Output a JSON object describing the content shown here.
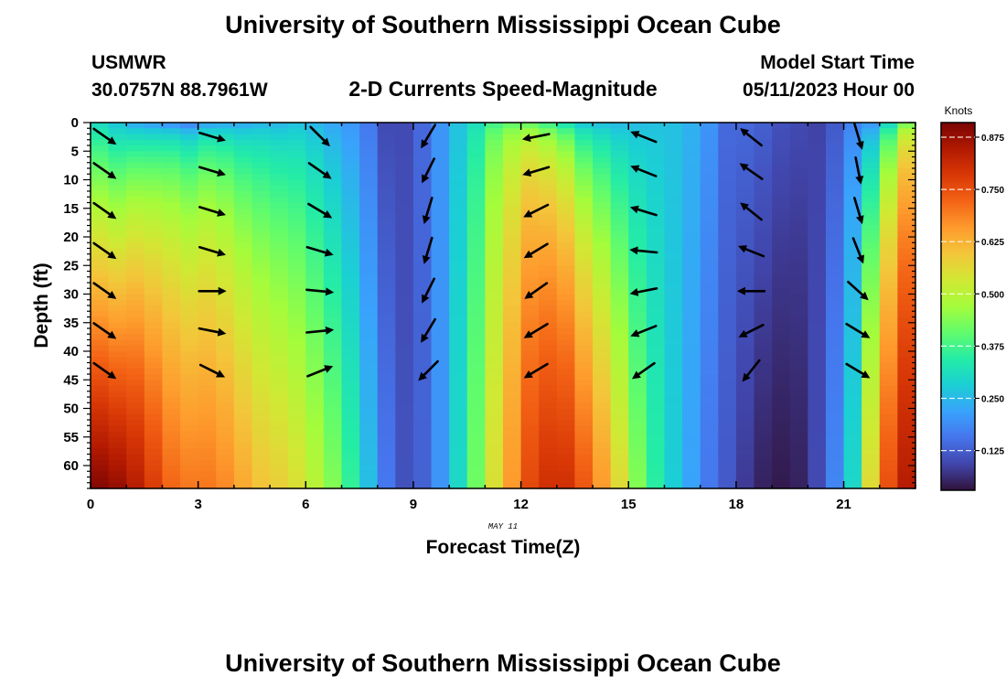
{
  "header": {
    "title": "University of Southern Mississippi Ocean Cube",
    "station": "USMWR",
    "location": "30.0757N  88.7961W",
    "subtitle": "2-D Currents Speed-Magnitude",
    "start_label": "Model Start Time",
    "start_value": "05/11/2023 Hour 00"
  },
  "footer": {
    "title": "University of Southern Mississippi Ocean Cube"
  },
  "colors": {
    "arrow": "#000000",
    "colormap": [
      "#30123b",
      "#4145ab",
      "#4675ed",
      "#39a2fc",
      "#1bcfd4",
      "#24eca6",
      "#61fc6c",
      "#a4fc3b",
      "#d1e834",
      "#f3c63a",
      "#fe9b2d",
      "#f36315",
      "#d93806",
      "#b11901",
      "#7a0403"
    ]
  },
  "chart_data": {
    "type": "heatmap",
    "xlabel": "Forecast Time(Z)",
    "ylabel": "Depth (ft)",
    "date_label": "MAY 11",
    "colorbar_label": "Knots",
    "colorbar_ticks": [
      "0.125",
      "0.250",
      "0.375",
      "0.500",
      "0.625",
      "0.750",
      "0.875"
    ],
    "xlim": [
      0,
      23
    ],
    "ylim": [
      0,
      64
    ],
    "x_ticks": [
      "0",
      "3",
      "6",
      "9",
      "12",
      "15",
      "18",
      "21"
    ],
    "y_ticks": [
      "0",
      "5",
      "10",
      "15",
      "20",
      "25",
      "30",
      "35",
      "40",
      "45",
      "50",
      "55",
      "60"
    ],
    "clim": [
      0.03,
      0.91
    ],
    "hours": [
      0,
      0.5,
      1,
      1.5,
      2,
      2.5,
      3,
      3.5,
      4,
      4.5,
      5,
      5.5,
      6,
      6.5,
      7,
      7.5,
      8,
      8.5,
      9,
      9.5,
      10,
      10.5,
      11,
      11.5,
      12,
      12.5,
      13,
      13.5,
      14,
      14.5,
      15,
      15.5,
      16,
      16.5,
      17,
      17.5,
      18,
      18.5,
      19,
      19.5,
      20,
      20.5,
      21,
      21.5,
      22,
      22.5,
      23
    ],
    "speed_top": [
      0.3,
      0.26,
      0.2,
      0.16,
      0.1,
      0.08,
      0.13,
      0.17,
      0.19,
      0.22,
      0.23,
      0.25,
      0.24,
      0.22,
      0.2,
      0.16,
      0.1,
      0.1,
      0.14,
      0.2,
      0.26,
      0.3,
      0.33,
      0.34,
      0.32,
      0.29,
      0.26,
      0.24,
      0.24,
      0.24,
      0.25,
      0.26,
      0.26,
      0.24,
      0.2,
      0.14,
      0.14,
      0.13,
      0.11,
      0.1,
      0.09,
      0.12,
      0.17,
      0.18,
      0.24,
      0.32,
      0.38
    ],
    "speed_bottom": [
      0.9,
      0.88,
      0.84,
      0.78,
      0.72,
      0.7,
      0.7,
      0.68,
      0.64,
      0.6,
      0.58,
      0.55,
      0.5,
      0.44,
      0.36,
      0.26,
      0.16,
      0.11,
      0.13,
      0.2,
      0.3,
      0.42,
      0.55,
      0.66,
      0.76,
      0.8,
      0.8,
      0.74,
      0.66,
      0.56,
      0.44,
      0.35,
      0.28,
      0.22,
      0.16,
      0.12,
      0.08,
      0.05,
      0.04,
      0.05,
      0.1,
      0.18,
      0.3,
      0.56,
      0.75,
      0.84,
      0.9
    ],
    "depth_curve": [
      0.8,
      0.75,
      0.55,
      0.45,
      0.35,
      0.35,
      0.35,
      0.4,
      0.45,
      0.5,
      0.55,
      0.6,
      0.65,
      0.7,
      0.75,
      0.8,
      0.85,
      0.85,
      0.8,
      0.7,
      0.5,
      0.4,
      0.3,
      0.3,
      0.3,
      0.35,
      0.4,
      0.5,
      0.55,
      0.6,
      0.65,
      0.7,
      0.72,
      0.75,
      0.78,
      0.8,
      0.8,
      0.8,
      0.8,
      0.8,
      0.8,
      0.8,
      0.6,
      0.5,
      0.4,
      0.3,
      0.25
    ],
    "arrow_depths": [
      2,
      8,
      15,
      22,
      29,
      36,
      43
    ],
    "arrows": [
      {
        "hour": 0,
        "dir": [
          [
            1,
            0.7
          ],
          [
            1,
            0.7
          ],
          [
            1,
            0.7
          ],
          [
            1,
            0.7
          ],
          [
            1,
            0.7
          ],
          [
            1,
            0.7
          ],
          [
            1,
            0.7
          ]
        ]
      },
      {
        "hour": 3,
        "dir": [
          [
            1,
            0.3
          ],
          [
            1,
            0.3
          ],
          [
            1,
            0.3
          ],
          [
            1,
            0.3
          ],
          [
            1,
            0
          ],
          [
            1,
            0.2
          ],
          [
            1,
            0.5
          ]
        ]
      },
      {
        "hour": 6,
        "dir": [
          [
            1,
            1
          ],
          [
            1,
            0.7
          ],
          [
            1,
            0.6
          ],
          [
            1,
            0.3
          ],
          [
            1,
            0.1
          ],
          [
            1,
            -0.1
          ],
          [
            1,
            -0.4
          ]
        ]
      },
      {
        "hour": 9,
        "dir": [
          [
            -0.6,
            1
          ],
          [
            -0.5,
            1
          ],
          [
            -0.3,
            1
          ],
          [
            -0.3,
            1
          ],
          [
            -0.5,
            1
          ],
          [
            -0.6,
            1
          ],
          [
            -1,
            1
          ]
        ]
      },
      {
        "hour": 12,
        "dir": [
          [
            -1,
            0.2
          ],
          [
            -1,
            0.3
          ],
          [
            -1,
            0.5
          ],
          [
            -1,
            0.6
          ],
          [
            -1,
            0.7
          ],
          [
            -1,
            0.6
          ],
          [
            -1,
            0.6
          ]
        ]
      },
      {
        "hour": 15,
        "dir": [
          [
            -1,
            -0.4
          ],
          [
            -1,
            -0.4
          ],
          [
            -1,
            -0.3
          ],
          [
            -1,
            -0.1
          ],
          [
            -1,
            0.2
          ],
          [
            -1,
            0.4
          ],
          [
            -1,
            0.7
          ]
        ]
      },
      {
        "hour": 18,
        "dir": [
          [
            -1,
            -0.8
          ],
          [
            -1,
            -0.7
          ],
          [
            -1,
            -0.8
          ],
          [
            -1,
            -0.4
          ],
          [
            -1,
            0
          ],
          [
            -1,
            0.5
          ],
          [
            -0.8,
            1
          ]
        ]
      },
      {
        "hour": 21,
        "dir": [
          [
            0.3,
            1
          ],
          [
            0.2,
            1
          ],
          [
            0.3,
            1
          ],
          [
            0.4,
            1
          ],
          [
            1,
            0.9
          ],
          [
            1,
            0.6
          ],
          [
            1,
            0.6
          ]
        ]
      }
    ]
  }
}
